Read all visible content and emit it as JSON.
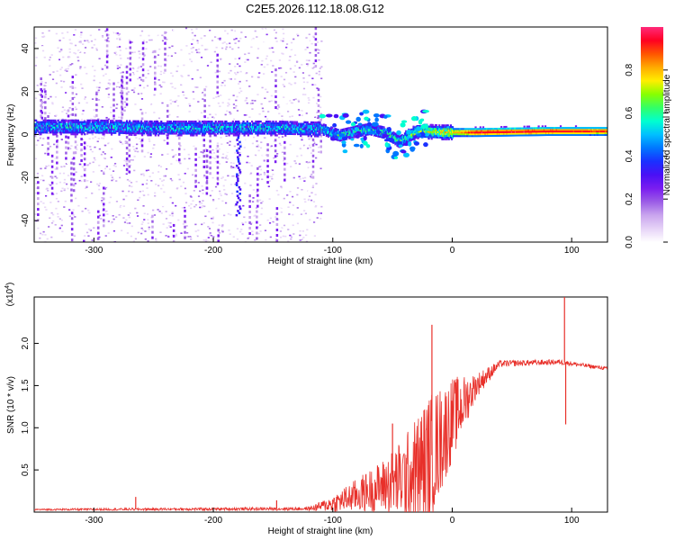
{
  "title": "C2E5.2026.112.18.08.G12",
  "chart_data": [
    {
      "type": "heatmap",
      "name": "spectrogram",
      "xlabel": "Height of straight line (km)",
      "ylabel": "Frequency (Hz)",
      "xlim": [
        -350,
        130
      ],
      "ylim": [
        -50,
        50
      ],
      "xticks": [
        -300,
        -200,
        -100,
        0,
        100
      ],
      "yticks": [
        -40,
        -20,
        0,
        20,
        40
      ],
      "colorbar": {
        "label": "Normalized spectral amplitude",
        "range": [
          0,
          1
        ],
        "ticks": [
          "0.0",
          "0.2",
          "0.4",
          "0.6",
          "0.8"
        ],
        "colors": [
          "#ffffff",
          "#e6d3f7",
          "#c9a5ee",
          "#9b5ce6",
          "#7a1df0",
          "#4a10f5",
          "#1a30ff",
          "#0077ff",
          "#00c0ff",
          "#00ffd0",
          "#33ff66",
          "#88ff00",
          "#ffee00",
          "#ffaa00",
          "#ff5500",
          "#ff0022",
          "#ff2a7a"
        ]
      },
      "ridge": [
        {
          "x": -350,
          "f": 4.0,
          "amp": 0.45
        },
        {
          "x": -300,
          "f": 4.0,
          "amp": 0.45
        },
        {
          "x": -250,
          "f": 3.5,
          "amp": 0.45
        },
        {
          "x": -200,
          "f": 3.5,
          "amp": 0.45
        },
        {
          "x": -150,
          "f": 3.5,
          "amp": 0.45
        },
        {
          "x": -110,
          "f": 3.0,
          "amp": 0.45
        },
        {
          "x": -95,
          "f": 0.0,
          "amp": 0.5
        },
        {
          "x": -80,
          "f": 2.0,
          "amp": 0.5
        },
        {
          "x": -70,
          "f": 3.0,
          "amp": 0.5
        },
        {
          "x": -55,
          "f": 1.0,
          "amp": 0.5
        },
        {
          "x": -45,
          "f": -3.0,
          "amp": 0.55
        },
        {
          "x": -30,
          "f": 2.0,
          "amp": 0.6
        },
        {
          "x": -10,
          "f": 1.5,
          "amp": 0.7
        },
        {
          "x": 20,
          "f": 1.5,
          "amp": 0.95
        },
        {
          "x": 80,
          "f": 2.0,
          "amp": 0.95
        },
        {
          "x": 130,
          "f": 2.0,
          "amp": 0.9
        }
      ]
    },
    {
      "type": "line",
      "name": "snr",
      "xlabel": "Height of straight line (km)",
      "ylabel": "SNR (10 * v/v)",
      "multiplier": "(x10",
      "multiplier_exp": "4",
      "multiplier_close": ")",
      "xlim": [
        -350,
        130
      ],
      "ylim": [
        0,
        2.55
      ],
      "xticks": [
        -300,
        -200,
        -100,
        0,
        100
      ],
      "yticks": [
        "0.5",
        "1.0",
        "1.5",
        "2.0"
      ],
      "color": "#e8302a",
      "envelope": [
        {
          "x": -350,
          "base": 0.03,
          "spread": 0.01
        },
        {
          "x": -120,
          "base": 0.04,
          "spread": 0.02
        },
        {
          "x": -100,
          "base": 0.1,
          "spread": 0.1
        },
        {
          "x": -80,
          "base": 0.2,
          "spread": 0.2
        },
        {
          "x": -60,
          "base": 0.3,
          "spread": 0.3
        },
        {
          "x": -40,
          "base": 0.4,
          "spread": 0.5
        },
        {
          "x": -20,
          "base": 0.6,
          "spread": 0.8
        },
        {
          "x": 0,
          "base": 1.1,
          "spread": 0.5
        },
        {
          "x": 20,
          "base": 1.5,
          "spread": 0.15
        },
        {
          "x": 40,
          "base": 1.76,
          "spread": 0.04
        },
        {
          "x": 90,
          "base": 1.78,
          "spread": 0.03
        },
        {
          "x": 130,
          "base": 1.7,
          "spread": 0.02
        }
      ],
      "spikes": [
        {
          "x": -265,
          "y": 0.18
        },
        {
          "x": -147,
          "y": 0.14
        },
        {
          "x": -17,
          "y": 2.22
        },
        {
          "x": -50,
          "y": 1.05
        },
        {
          "x": 94,
          "y": 2.58
        },
        {
          "x": 95,
          "y": 1.04
        }
      ]
    }
  ]
}
